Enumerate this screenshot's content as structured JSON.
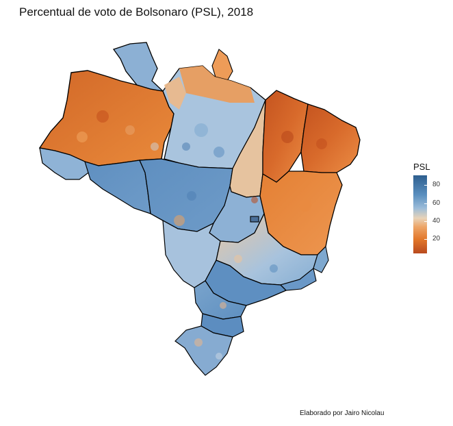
{
  "title": "Percentual de voto de Bolsonaro (PSL), 2018",
  "legend": {
    "title": "PSL",
    "labels": [
      "80",
      "60",
      "40",
      "20"
    ]
  },
  "credit": "Elaborado por Jairo Nicolau",
  "colors": {
    "high": "#2e5f8f",
    "mid_high": "#6b9ac6",
    "neutral": "#e8d3b8",
    "mid_low": "#ee9a55",
    "low": "#c9541f"
  }
}
